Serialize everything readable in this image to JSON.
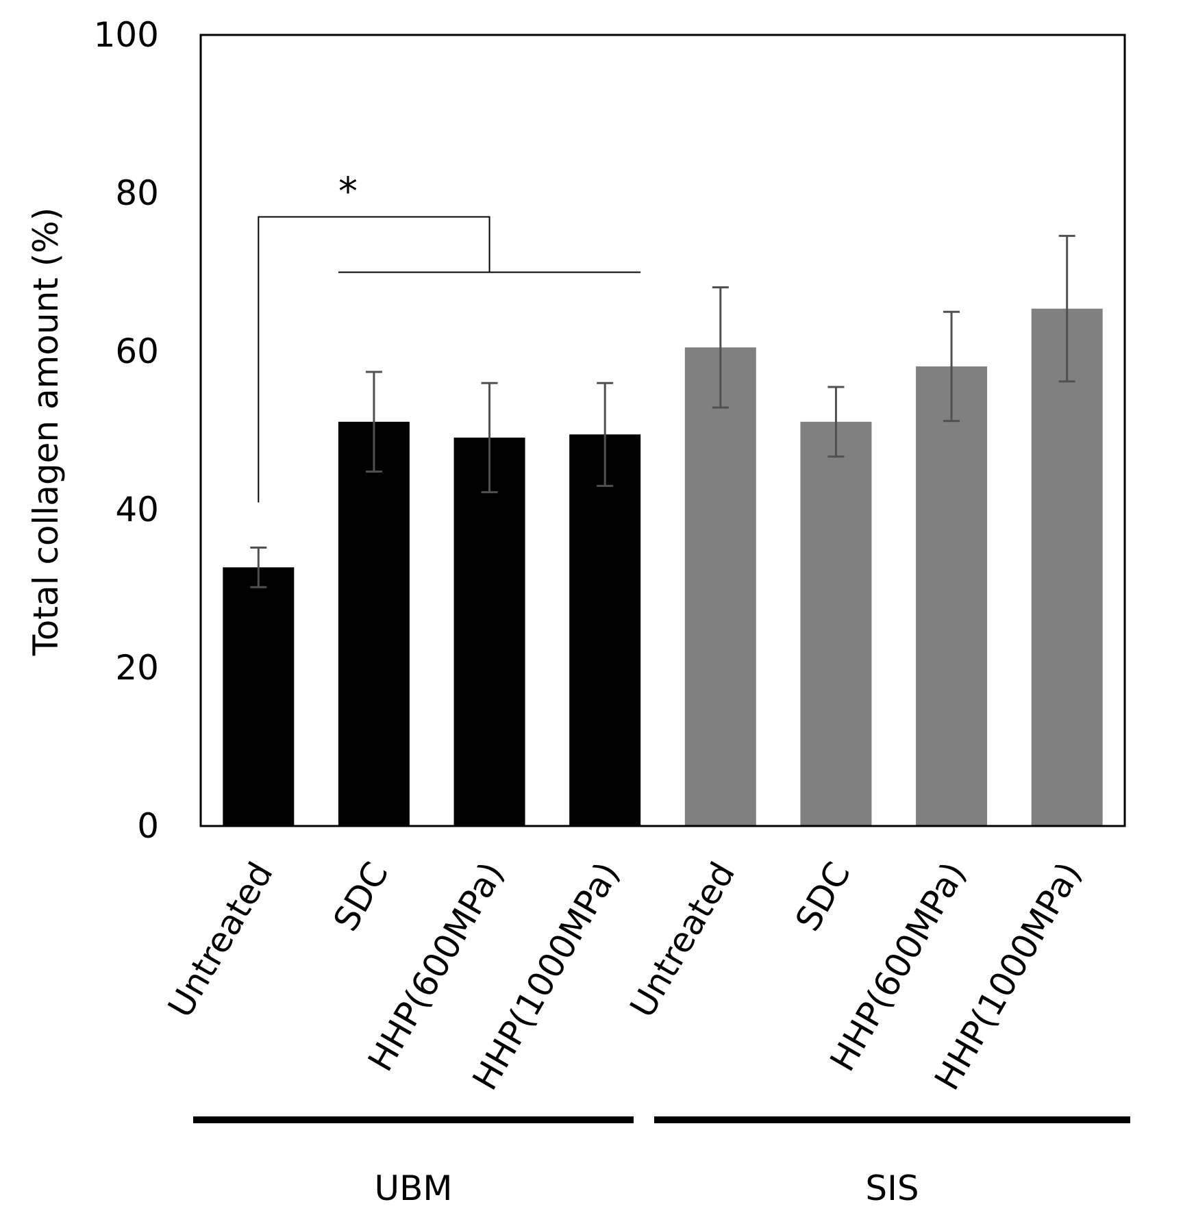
{
  "chart_data": {
    "type": "bar",
    "title": "",
    "xlabel": "",
    "ylabel": "Total collagen amount (%)",
    "ylim": [
      0,
      100
    ],
    "y_ticks": [
      "0",
      "20",
      "40",
      "60",
      "80",
      "100"
    ],
    "grid": false,
    "categories": [
      "Untreated",
      "SDC",
      "HHP(600MPa)",
      "HHP(1000MPa)",
      "Untreated",
      "SDC",
      "HHP(600MPa)",
      "HHP(1000MPa)"
    ],
    "values": [
      32.7,
      51.1,
      49.1,
      49.5,
      60.5,
      51.1,
      58.1,
      65.4
    ],
    "errors": [
      2.5,
      6.3,
      6.9,
      6.5,
      7.6,
      4.4,
      6.9,
      9.2
    ],
    "bar_colors": [
      "#000000",
      "#000000",
      "#000000",
      "#000000",
      "#808080",
      "#808080",
      "#808080",
      "#808080"
    ],
    "error_bar_color": "#505050",
    "groups": [
      {
        "label": "UBM",
        "bars": [
          0,
          1,
          2,
          3
        ]
      },
      {
        "label": "SIS",
        "bars": [
          4,
          5,
          6,
          7
        ]
      }
    ],
    "significance": [
      {
        "label": "*",
        "from": 0,
        "to": [
          1,
          2,
          3
        ],
        "level": 77
      }
    ]
  }
}
